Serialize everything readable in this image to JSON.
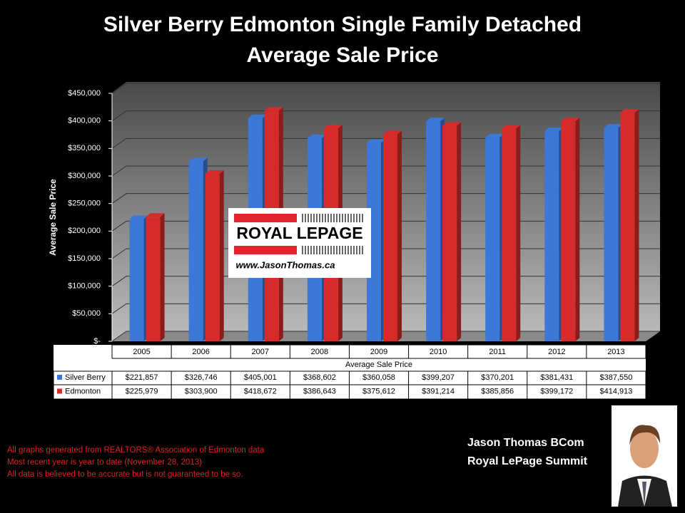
{
  "chart_data": {
    "type": "bar",
    "title": "Silver Berry Edmonton Single Family Detached",
    "subtitle": "Average Sale Price",
    "y_label": "Average Sale Price",
    "x_label": "Average Sale Price",
    "categories": [
      "2005",
      "2006",
      "2007",
      "2008",
      "2009",
      "2010",
      "2011",
      "2012",
      "2013"
    ],
    "series": [
      {
        "name": "Silver Berry",
        "color": "#3b78d8",
        "values": [
          221857,
          326746,
          405001,
          368602,
          360058,
          399207,
          370201,
          381431,
          387550
        ],
        "value_labels": [
          "$221,857",
          "$326,746",
          "$405,001",
          "$368,602",
          "$360,058",
          "$399,207",
          "$370,201",
          "$381,431",
          "$387,550"
        ]
      },
      {
        "name": "Edmonton",
        "color": "#d62b2b",
        "values": [
          225979,
          303900,
          418672,
          386643,
          375612,
          391214,
          385856,
          399172,
          414913
        ],
        "value_labels": [
          "$225,979",
          "$303,900",
          "$418,672",
          "$386,643",
          "$375,612",
          "$391,214",
          "$385,856",
          "$399,172",
          "$414,913"
        ]
      }
    ],
    "ylim": [
      0,
      450000
    ],
    "yticks": [
      {
        "value": 0,
        "label": "$-"
      },
      {
        "value": 50000,
        "label": "$50,000"
      },
      {
        "value": 100000,
        "label": "$100,000"
      },
      {
        "value": 150000,
        "label": "$150,000"
      },
      {
        "value": 200000,
        "label": "$200,000"
      },
      {
        "value": 250000,
        "label": "$250,000"
      },
      {
        "value": 300000,
        "label": "$300,000"
      },
      {
        "value": 350000,
        "label": "$350,000"
      },
      {
        "value": 400000,
        "label": "$400,000"
      },
      {
        "value": 450000,
        "label": "$450,000"
      }
    ],
    "grid": true
  },
  "logo": {
    "brand": "ROYAL LEPAGE",
    "url": "www.JasonThomas.ca"
  },
  "footnotes": [
    "All graphs generated from REALTORS® Association of Edmonton data",
    "Most recent year is year to date (November 28, 2013)",
    "All data is believed to be accurate but is not guaranteed to be so."
  ],
  "agent": {
    "name": "Jason Thomas BCom",
    "company": "Royal LePage Summit"
  }
}
